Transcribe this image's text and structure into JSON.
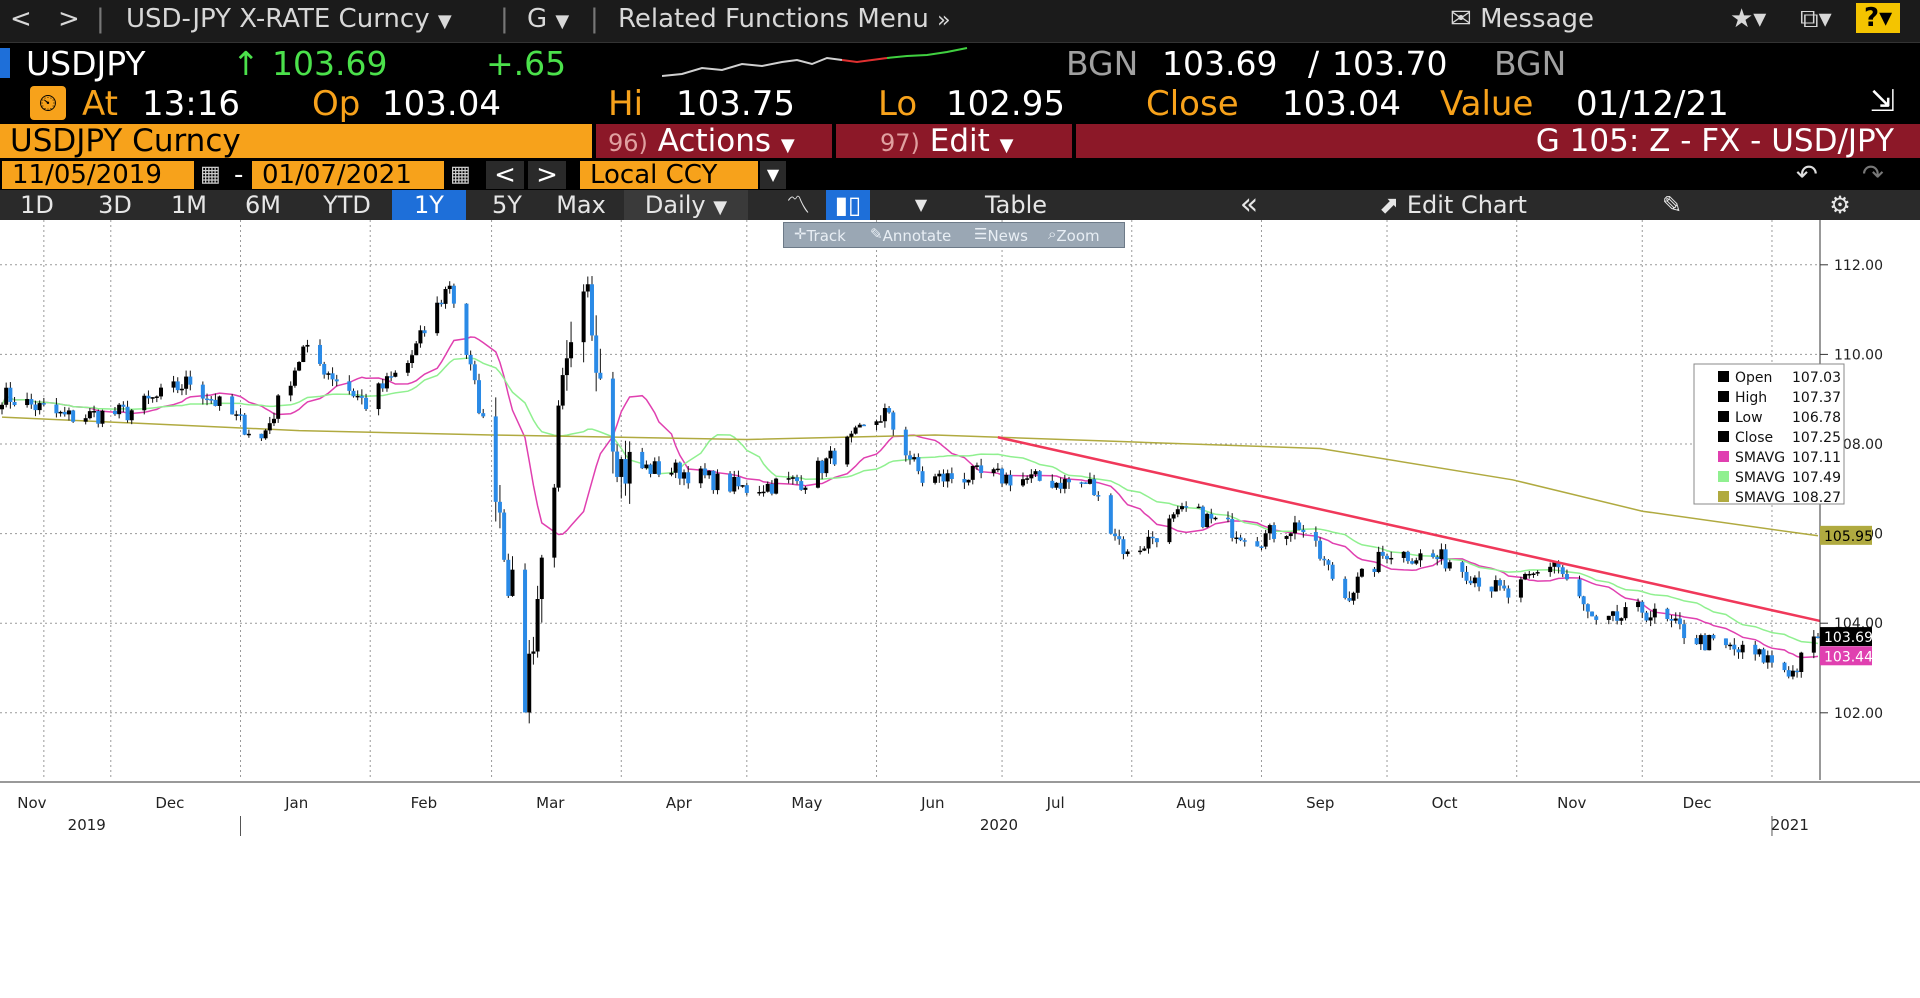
{
  "navbar": {
    "back": "<",
    "forward": ">",
    "security_menu": "USD-JPY X-RATE Curncy",
    "function_menu": "G",
    "related_menu": "Related Functions Menu",
    "message": "Message",
    "help": "?"
  },
  "quote": {
    "ticker": "USDJPY",
    "last": "103.69",
    "change": "+.65",
    "source": "BGN",
    "bid": "103.69",
    "ask": "103.70",
    "source2": "BGN"
  },
  "ohlc": {
    "at_label": "At",
    "at_value": "13:16",
    "open_label": "Op",
    "open_value": "103.04",
    "high_label": "Hi",
    "high_value": "103.75",
    "low_label": "Lo",
    "low_value": "102.95",
    "close_label": "Close",
    "close_value": "103.04",
    "value_label": "Value",
    "value_date": "01/12/21"
  },
  "security_bar": {
    "security": "USDJPY Curncy",
    "actions_num": "96)",
    "actions": "Actions",
    "edit_num": "97)",
    "edit": "Edit",
    "chart_id": "G 105: Z - FX - USD/JPY"
  },
  "date_bar": {
    "start": "11/05/2019",
    "end": "01/07/2021",
    "dash": "-",
    "currency": "Local CCY"
  },
  "toolbar": {
    "periods": [
      "1D",
      "3D",
      "1M",
      "6M",
      "YTD",
      "1Y",
      "5Y",
      "Max"
    ],
    "selected": "1Y",
    "frequency": "Daily",
    "table": "Table",
    "edit_chart": "Edit Chart"
  },
  "float_toolbar": {
    "track": "Track",
    "annotate": "Annotate",
    "news": "News",
    "zoom": "Zoom"
  },
  "colors": {
    "up_candle": "#000000",
    "down_candle": "#2a8ae6",
    "sma_short": "#e040b0",
    "sma_mid": "#90f090",
    "sma_long": "#b0aa40",
    "trendline": "#f0385a",
    "label_orange": "#f7a21b",
    "price_green": "#4be14b"
  },
  "chart_data": {
    "type": "candlestick",
    "ylim": [
      100.5,
      113
    ],
    "y_ticks": [
      "102.00",
      "104.00",
      "106.00",
      "108.00",
      "110.00",
      "112.00"
    ],
    "x_months": [
      "Nov",
      "Dec",
      "Jan",
      "Feb",
      "Mar",
      "Apr",
      "May",
      "Jun",
      "Jul",
      "Aug",
      "Sep",
      "Oct",
      "Nov",
      "Dec"
    ],
    "x_years": [
      "2019",
      "2020",
      "2021"
    ],
    "right_tags": {
      "sma_long": "105.95",
      "last": "103.69",
      "sma_short": "103.44"
    },
    "legend": [
      {
        "label": "Open",
        "value": "107.03",
        "color": "#000000"
      },
      {
        "label": "High",
        "value": "107.37",
        "color": "#000000"
      },
      {
        "label": "Low",
        "value": "106.78",
        "color": "#000000"
      },
      {
        "label": "Close",
        "value": "107.25",
        "color": "#000000"
      },
      {
        "label": "SMAVG",
        "value": "107.11",
        "color": "#e040b0"
      },
      {
        "label": "SMAVG",
        "value": "107.49",
        "color": "#90f090"
      },
      {
        "label": "SMAVG",
        "value": "108.27",
        "color": "#b0aa40"
      }
    ],
    "trendline": {
      "from": [
        "2020-06-30",
        108.15
      ],
      "to": [
        "2021-01-12",
        104.05
      ]
    },
    "anchors": [
      [
        "2019-11-05",
        109.1
      ],
      [
        "2019-11-20",
        108.6
      ],
      [
        "2019-12-05",
        108.7
      ],
      [
        "2019-12-20",
        109.4
      ],
      [
        "2020-01-06",
        108.1
      ],
      [
        "2020-01-16",
        110.1
      ],
      [
        "2020-01-31",
        108.9
      ],
      [
        "2020-02-10",
        109.8
      ],
      [
        "2020-02-20",
        111.6
      ],
      [
        "2020-03-02",
        107.3
      ],
      [
        "2020-03-09",
        102.4
      ],
      [
        "2020-03-18",
        109.0
      ],
      [
        "2020-03-24",
        111.2
      ],
      [
        "2020-04-01",
        107.5
      ],
      [
        "2020-04-15",
        107.4
      ],
      [
        "2020-04-30",
        107.0
      ],
      [
        "2020-05-15",
        107.2
      ],
      [
        "2020-06-03",
        108.7
      ],
      [
        "2020-06-12",
        107.2
      ],
      [
        "2020-06-25",
        107.3
      ],
      [
        "2020-07-08",
        107.2
      ],
      [
        "2020-07-22",
        107.1
      ],
      [
        "2020-07-31",
        105.5
      ],
      [
        "2020-08-14",
        106.5
      ],
      [
        "2020-08-31",
        105.9
      ],
      [
        "2020-09-10",
        106.2
      ],
      [
        "2020-09-21",
        104.6
      ],
      [
        "2020-10-01",
        105.6
      ],
      [
        "2020-10-16",
        105.4
      ],
      [
        "2020-10-30",
        104.6
      ],
      [
        "2020-11-10",
        105.4
      ],
      [
        "2020-11-20",
        103.9
      ],
      [
        "2020-12-01",
        104.3
      ],
      [
        "2020-12-15",
        103.6
      ],
      [
        "2020-12-31",
        103.2
      ],
      [
        "2021-01-06",
        102.9
      ],
      [
        "2021-01-12",
        103.69
      ]
    ]
  }
}
